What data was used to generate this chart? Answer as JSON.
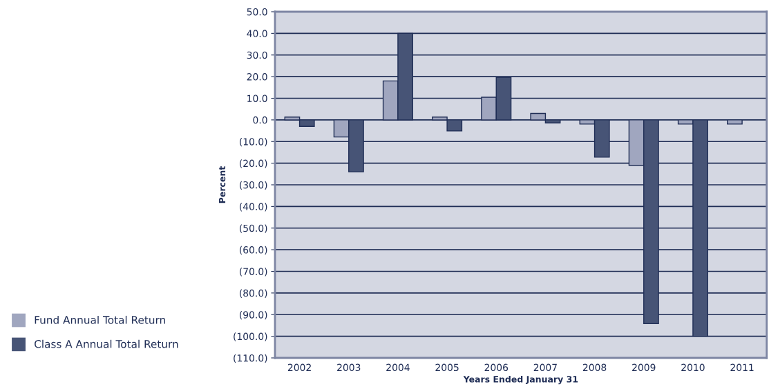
{
  "chart_data": {
    "type": "bar",
    "xlabel": "Years Ended January 31",
    "ylabel": "Percent",
    "categories": [
      "2002",
      "2003",
      "2004",
      "2005",
      "2006",
      "2007",
      "2008",
      "2009",
      "2010",
      "2011"
    ],
    "series": [
      {
        "name": "Fund Annual Total Return",
        "color": "#a0a6bf",
        "values": [
          1.3,
          -7.9,
          18.0,
          1.3,
          10.5,
          3.0,
          -1.9,
          -21.0,
          -1.9,
          -1.9
        ]
      },
      {
        "name": "Class A Annual Total Return",
        "color": "#475476",
        "values": [
          -3.0,
          -24.0,
          40.0,
          -5.1,
          19.7,
          -1.4,
          -17.2,
          -94.2,
          -100.0,
          null
        ]
      }
    ],
    "ylim": [
      -110,
      50
    ],
    "yticks": [
      {
        "value": 50,
        "label": "50.0"
      },
      {
        "value": 40,
        "label": "40.0"
      },
      {
        "value": 30,
        "label": "30.0"
      },
      {
        "value": 20,
        "label": "20.0"
      },
      {
        "value": 10,
        "label": "10.0"
      },
      {
        "value": 0,
        "label": "0.0"
      },
      {
        "value": -10,
        "label": "(10.0)"
      },
      {
        "value": -20,
        "label": "(20.0)"
      },
      {
        "value": -30,
        "label": "(30.0)"
      },
      {
        "value": -40,
        "label": "(40.0)"
      },
      {
        "value": -50,
        "label": "(50.0)"
      },
      {
        "value": -60,
        "label": "(60.0)"
      },
      {
        "value": -70,
        "label": "(70.0)"
      },
      {
        "value": -80,
        "label": "(80.0)"
      },
      {
        "value": -90,
        "label": "(90.0)"
      },
      {
        "value": -100,
        "label": "(100.0)"
      },
      {
        "value": -110,
        "label": "(110.0)"
      }
    ],
    "grid": "y",
    "legend": "left"
  }
}
